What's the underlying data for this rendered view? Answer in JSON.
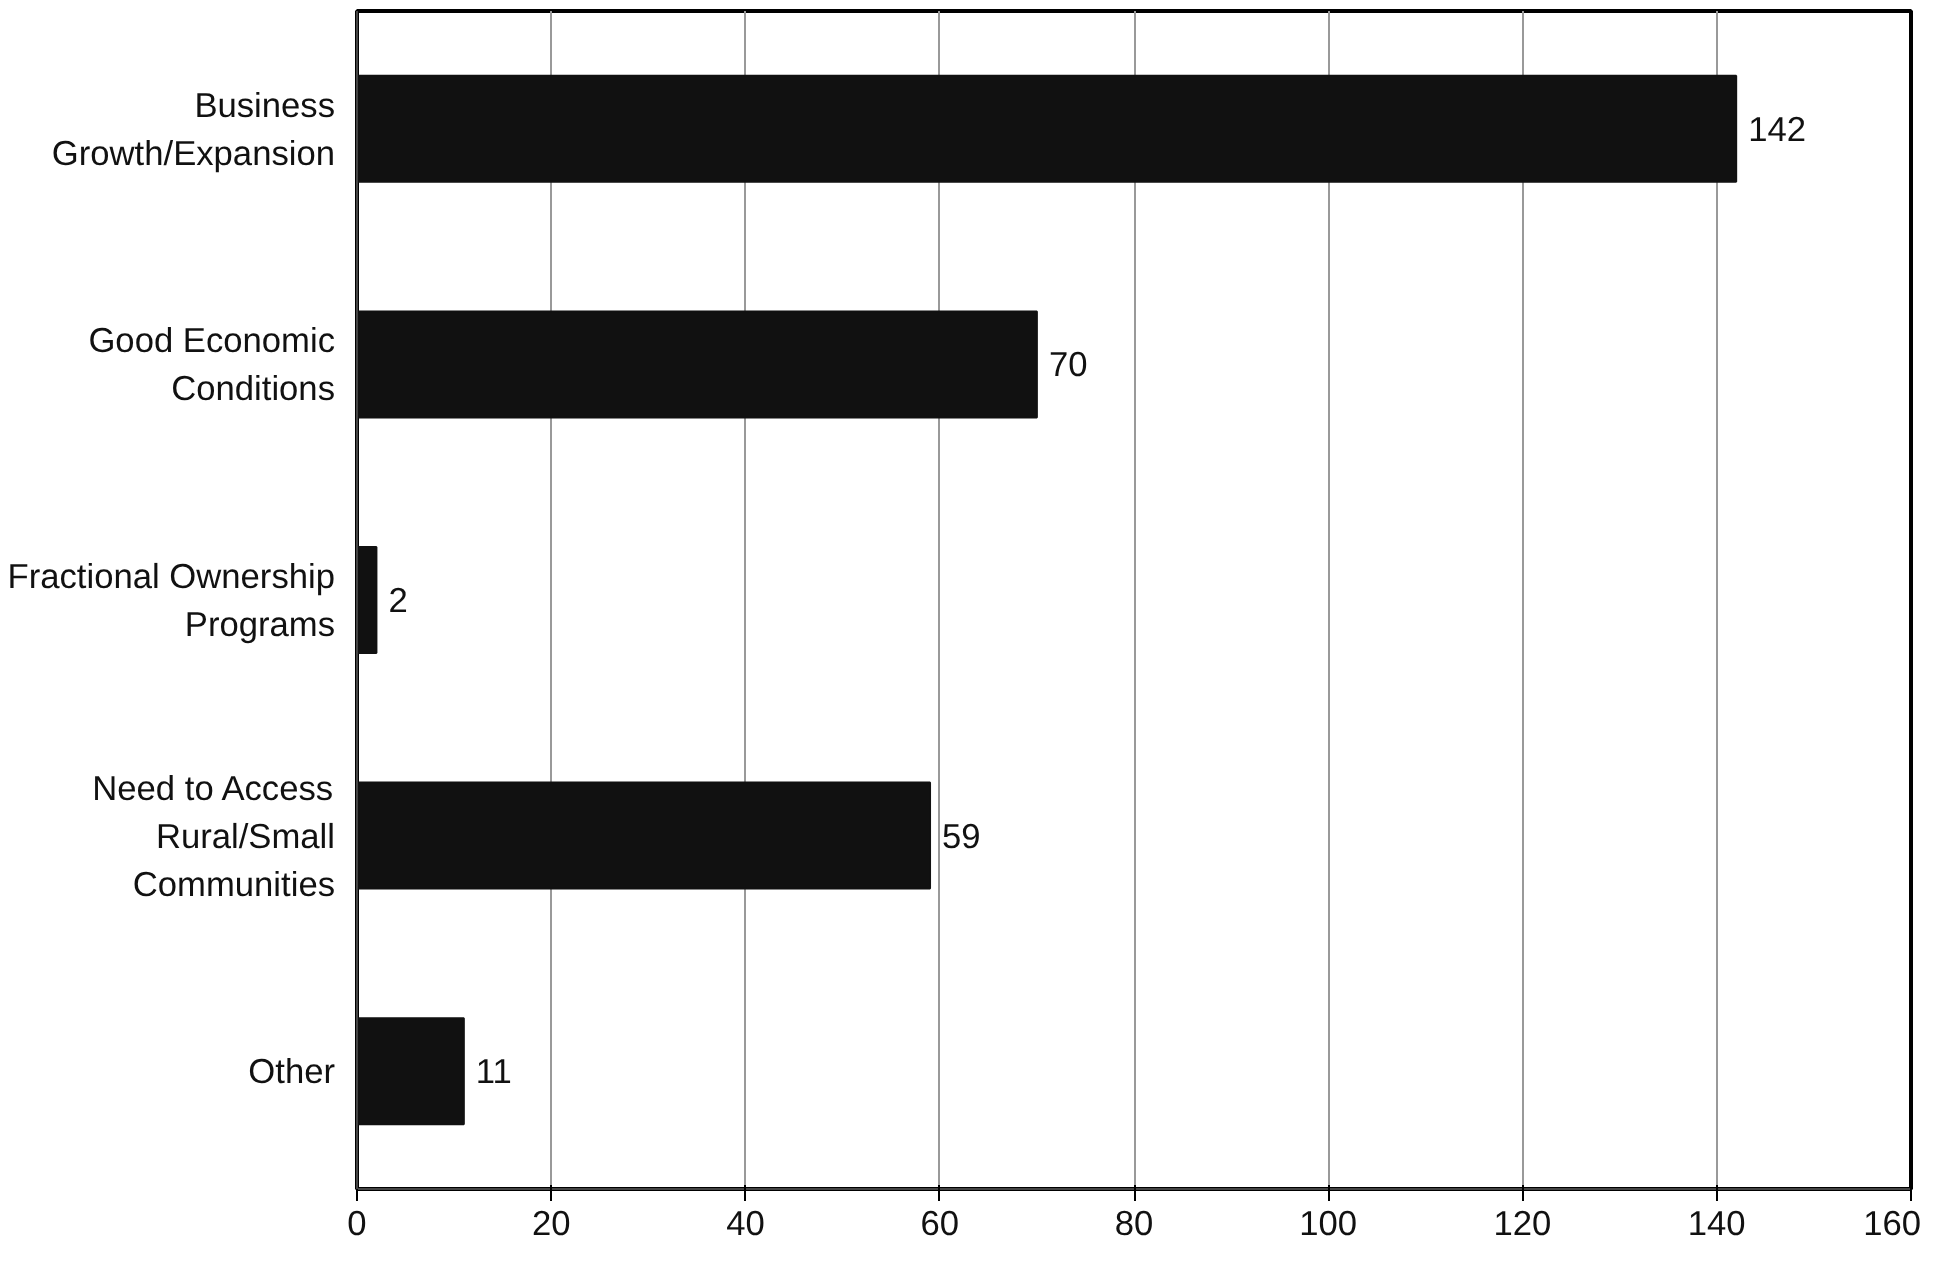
{
  "chart_data": {
    "type": "bar",
    "orientation": "horizontal",
    "categories": [
      "Business Growth/Expansion",
      "Good Economic Conditions",
      "Fractional Ownership Programs",
      "Need to Access Rural/Small Communities",
      "Other"
    ],
    "values": [
      142,
      70,
      2,
      59,
      11
    ],
    "color": "#111111",
    "xlim": [
      0,
      160
    ],
    "xticks": [
      0,
      20,
      40,
      60,
      80,
      100,
      120,
      140,
      160
    ],
    "grid": "x",
    "data_labels": true
  }
}
